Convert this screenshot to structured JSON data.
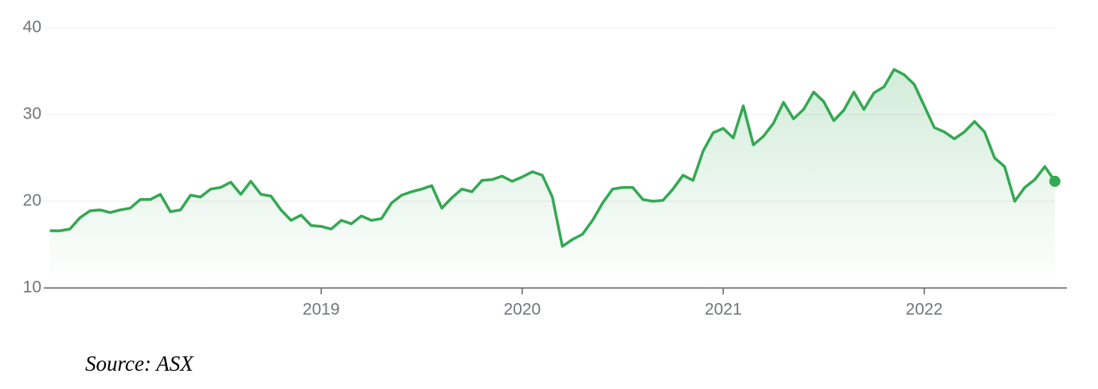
{
  "chart_data": {
    "type": "line",
    "source": "Source: ASX",
    "color": "#34a853",
    "x": [
      2017.65,
      2017.7,
      2017.75,
      2017.8,
      2017.85,
      2017.9,
      2017.95,
      2018.0,
      2018.05,
      2018.1,
      2018.15,
      2018.2,
      2018.25,
      2018.3,
      2018.35,
      2018.4,
      2018.45,
      2018.5,
      2018.55,
      2018.6,
      2018.65,
      2018.7,
      2018.75,
      2018.8,
      2018.85,
      2018.9,
      2018.95,
      2019.0,
      2019.05,
      2019.1,
      2019.15,
      2019.2,
      2019.25,
      2019.3,
      2019.35,
      2019.4,
      2019.45,
      2019.5,
      2019.55,
      2019.6,
      2019.65,
      2019.7,
      2019.75,
      2019.8,
      2019.85,
      2019.9,
      2019.95,
      2020.0,
      2020.05,
      2020.1,
      2020.15,
      2020.2,
      2020.25,
      2020.3,
      2020.35,
      2020.4,
      2020.45,
      2020.5,
      2020.55,
      2020.6,
      2020.65,
      2020.7,
      2020.75,
      2020.8,
      2020.85,
      2020.9,
      2020.95,
      2021.0,
      2021.05,
      2021.1,
      2021.15,
      2021.2,
      2021.25,
      2021.3,
      2021.35,
      2021.4,
      2021.45,
      2021.5,
      2021.55,
      2021.6,
      2021.65,
      2021.7,
      2021.75,
      2021.8,
      2021.85,
      2021.9,
      2021.95,
      2022.0,
      2022.05,
      2022.1,
      2022.15,
      2022.2,
      2022.25,
      2022.3,
      2022.35,
      2022.4,
      2022.45,
      2022.5,
      2022.55,
      2022.6,
      2022.65
    ],
    "values": [
      16.6,
      16.6,
      16.8,
      18.1,
      18.9,
      19.0,
      18.7,
      19.0,
      19.2,
      20.2,
      20.2,
      20.8,
      18.8,
      19.0,
      20.7,
      20.5,
      21.4,
      21.6,
      22.2,
      20.8,
      22.3,
      20.8,
      20.6,
      19.0,
      17.8,
      18.4,
      17.2,
      17.1,
      16.8,
      17.8,
      17.4,
      18.3,
      17.8,
      18.0,
      19.8,
      20.7,
      21.1,
      21.4,
      21.8,
      19.2,
      20.4,
      21.4,
      21.1,
      22.4,
      22.5,
      22.9,
      22.3,
      22.8,
      23.4,
      23.0,
      20.5,
      14.8,
      15.6,
      16.2,
      17.8,
      19.8,
      21.4,
      21.6,
      21.6,
      20.2,
      20.0,
      20.1,
      21.4,
      23.0,
      22.4,
      25.8,
      27.9,
      28.4,
      27.3,
      31.0,
      26.5,
      27.5,
      29.0,
      31.4,
      29.5,
      30.6,
      32.6,
      31.5,
      29.3,
      30.5,
      32.6,
      30.6,
      32.5,
      33.2,
      35.2,
      34.6,
      33.5,
      31.0,
      28.5,
      28.0,
      27.2,
      28.0,
      29.2,
      28.0,
      25.0,
      24.0,
      20.0,
      21.6,
      22.5,
      24.0,
      22.3
    ],
    "xlim": [
      2017.62,
      2022.71
    ],
    "xticks": [
      2019,
      2020,
      2021,
      2022
    ],
    "ylim": [
      10,
      40
    ],
    "yticks": [
      10,
      20,
      30,
      40
    ],
    "grid": true
  }
}
